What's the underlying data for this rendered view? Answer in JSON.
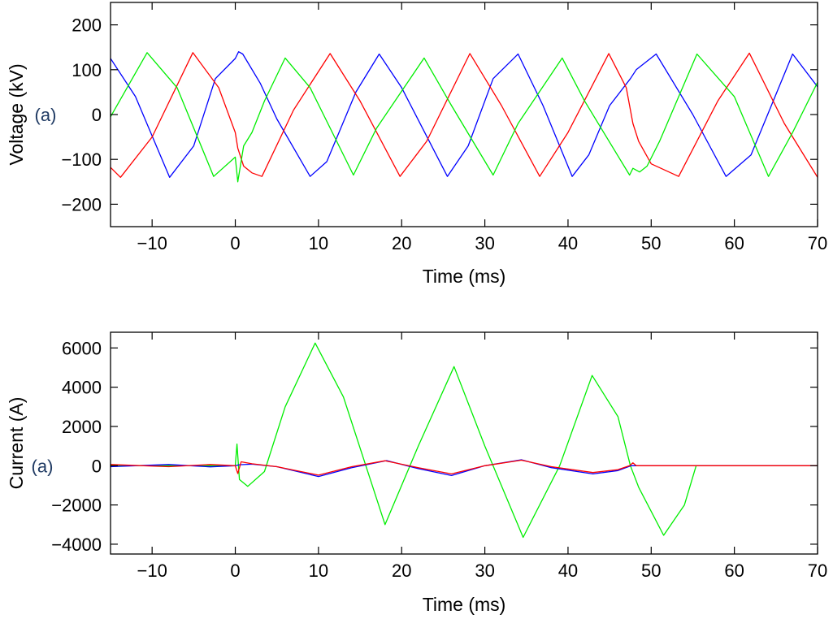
{
  "chart_data": [
    {
      "type": "line",
      "panel_mark": "(a)",
      "xlabel": "Time (ms)",
      "ylabel": "Voltage (kV)",
      "xlim": [
        -15,
        70
      ],
      "ylim": [
        -250,
        250
      ],
      "x_ticks": [
        -10,
        0,
        10,
        20,
        30,
        40,
        50,
        60,
        70
      ],
      "x_tick_labels": [
        "−10",
        "0",
        "10",
        "20",
        "30",
        "40",
        "50",
        "60",
        "70"
      ],
      "y_ticks": [
        200,
        100,
        0,
        -100,
        -200
      ],
      "y_tick_labels": [
        "200",
        "100",
        "0",
        "−100",
        "−200"
      ],
      "grid": false,
      "series": [
        {
          "color": "#0000ff",
          "x": [
            -15,
            -12,
            -7.9,
            -5,
            -2.4,
            0,
            0.4,
            0.9,
            3,
            5,
            9,
            11,
            14.5,
            17.3,
            20,
            25.5,
            28,
            31,
            34,
            37,
            40.5,
            42.5,
            45,
            47.5,
            48.2,
            50.6,
            55,
            59,
            62,
            67,
            70
          ],
          "values": [
            125,
            40,
            -140,
            -70,
            80,
            125,
            140,
            135,
            70,
            -10,
            -138,
            -105,
            50,
            135,
            60,
            -138,
            -70,
            80,
            135,
            20,
            -138,
            -90,
            20,
            80,
            100,
            135,
            0,
            -138,
            -90,
            135,
            62
          ]
        },
        {
          "color": "#ff0000",
          "x": [
            -15,
            -13.8,
            -10,
            -5.1,
            -2,
            0,
            0.3,
            1,
            2,
            3.2,
            7,
            11.4,
            15,
            19.8,
            23,
            28.2,
            32,
            36.6,
            40,
            44.9,
            47,
            47.8,
            48.5,
            50,
            53.3,
            58,
            61.8,
            66,
            70
          ],
          "values": [
            -118,
            -140,
            -50,
            138,
            60,
            -40,
            -75,
            -115,
            -130,
            -138,
            10,
            136,
            30,
            -138,
            -60,
            136,
            20,
            -138,
            -40,
            136,
            60,
            -20,
            -60,
            -110,
            -138,
            30,
            137,
            -20,
            -140
          ]
        },
        {
          "color": "#00ee00",
          "x": [
            -15,
            -10.6,
            -7,
            -2.6,
            0,
            0.3,
            1,
            2,
            3.5,
            6,
            9,
            14.2,
            17,
            22.7,
            26,
            31,
            34,
            39.3,
            42,
            47.4,
            47.8,
            48.6,
            49.5,
            51,
            55.5,
            60,
            64.1,
            67,
            70
          ],
          "values": [
            -5,
            138,
            60,
            -138,
            -95,
            -150,
            -70,
            -40,
            30,
            126,
            60,
            -135,
            -30,
            126,
            20,
            -135,
            -20,
            126,
            30,
            -135,
            -120,
            -128,
            -115,
            -60,
            135,
            40,
            -138,
            -40,
            72
          ]
        }
      ]
    },
    {
      "type": "line",
      "panel_mark": "(a)",
      "xlabel": "Time (ms)",
      "ylabel": "Current (A)",
      "xlim": [
        -15,
        70
      ],
      "ylim": [
        -4500,
        6800
      ],
      "x_ticks": [
        -10,
        0,
        10,
        20,
        30,
        40,
        50,
        60,
        70
      ],
      "x_tick_labels": [
        "−10",
        "0",
        "10",
        "20",
        "30",
        "40",
        "50",
        "60",
        "70"
      ],
      "y_ticks": [
        6000,
        4000,
        2000,
        0,
        -2000,
        -4000
      ],
      "y_tick_labels": [
        "6000",
        "4000",
        "2000",
        "0",
        "−2000",
        "−4000"
      ],
      "grid": false,
      "series": [
        {
          "color": "#00ee00",
          "x": [
            -15,
            -5,
            0,
            0.2,
            0.5,
            1.5,
            3.5,
            6,
            9.6,
            13,
            18,
            22,
            26.3,
            30,
            34.6,
            39,
            42.9,
            46,
            47.5,
            48.5,
            51.5,
            54,
            55.4,
            57,
            70
          ],
          "values": [
            0,
            0,
            0,
            1100,
            -700,
            -1050,
            -300,
            3000,
            6250,
            3500,
            -3000,
            1000,
            5050,
            1000,
            -3650,
            0,
            4600,
            2500,
            0,
            -1100,
            -3550,
            -2000,
            0,
            0,
            0
          ]
        },
        {
          "color": "#0000ff",
          "x": [
            -15,
            -8,
            -3,
            0,
            0.5,
            2,
            5,
            10,
            14,
            18.2,
            22,
            26,
            30,
            34.4,
            38,
            43,
            46,
            47.6,
            48,
            70
          ],
          "values": [
            -50,
            60,
            -60,
            0,
            50,
            80,
            -50,
            -550,
            -100,
            260,
            -150,
            -500,
            0,
            300,
            -100,
            -420,
            -250,
            0,
            0,
            0
          ]
        },
        {
          "color": "#ff0000",
          "x": [
            -15,
            -8,
            -3,
            0,
            0.3,
            0.7,
            2,
            5,
            10,
            14,
            18,
            22,
            26,
            30,
            34.4,
            38,
            43,
            46,
            47.4,
            47.8,
            48.2,
            70
          ],
          "values": [
            60,
            -50,
            60,
            0,
            -400,
            200,
            100,
            -50,
            -480,
            -50,
            250,
            -100,
            -420,
            0,
            280,
            -50,
            -350,
            -200,
            0,
            150,
            0,
            0
          ]
        }
      ]
    }
  ]
}
